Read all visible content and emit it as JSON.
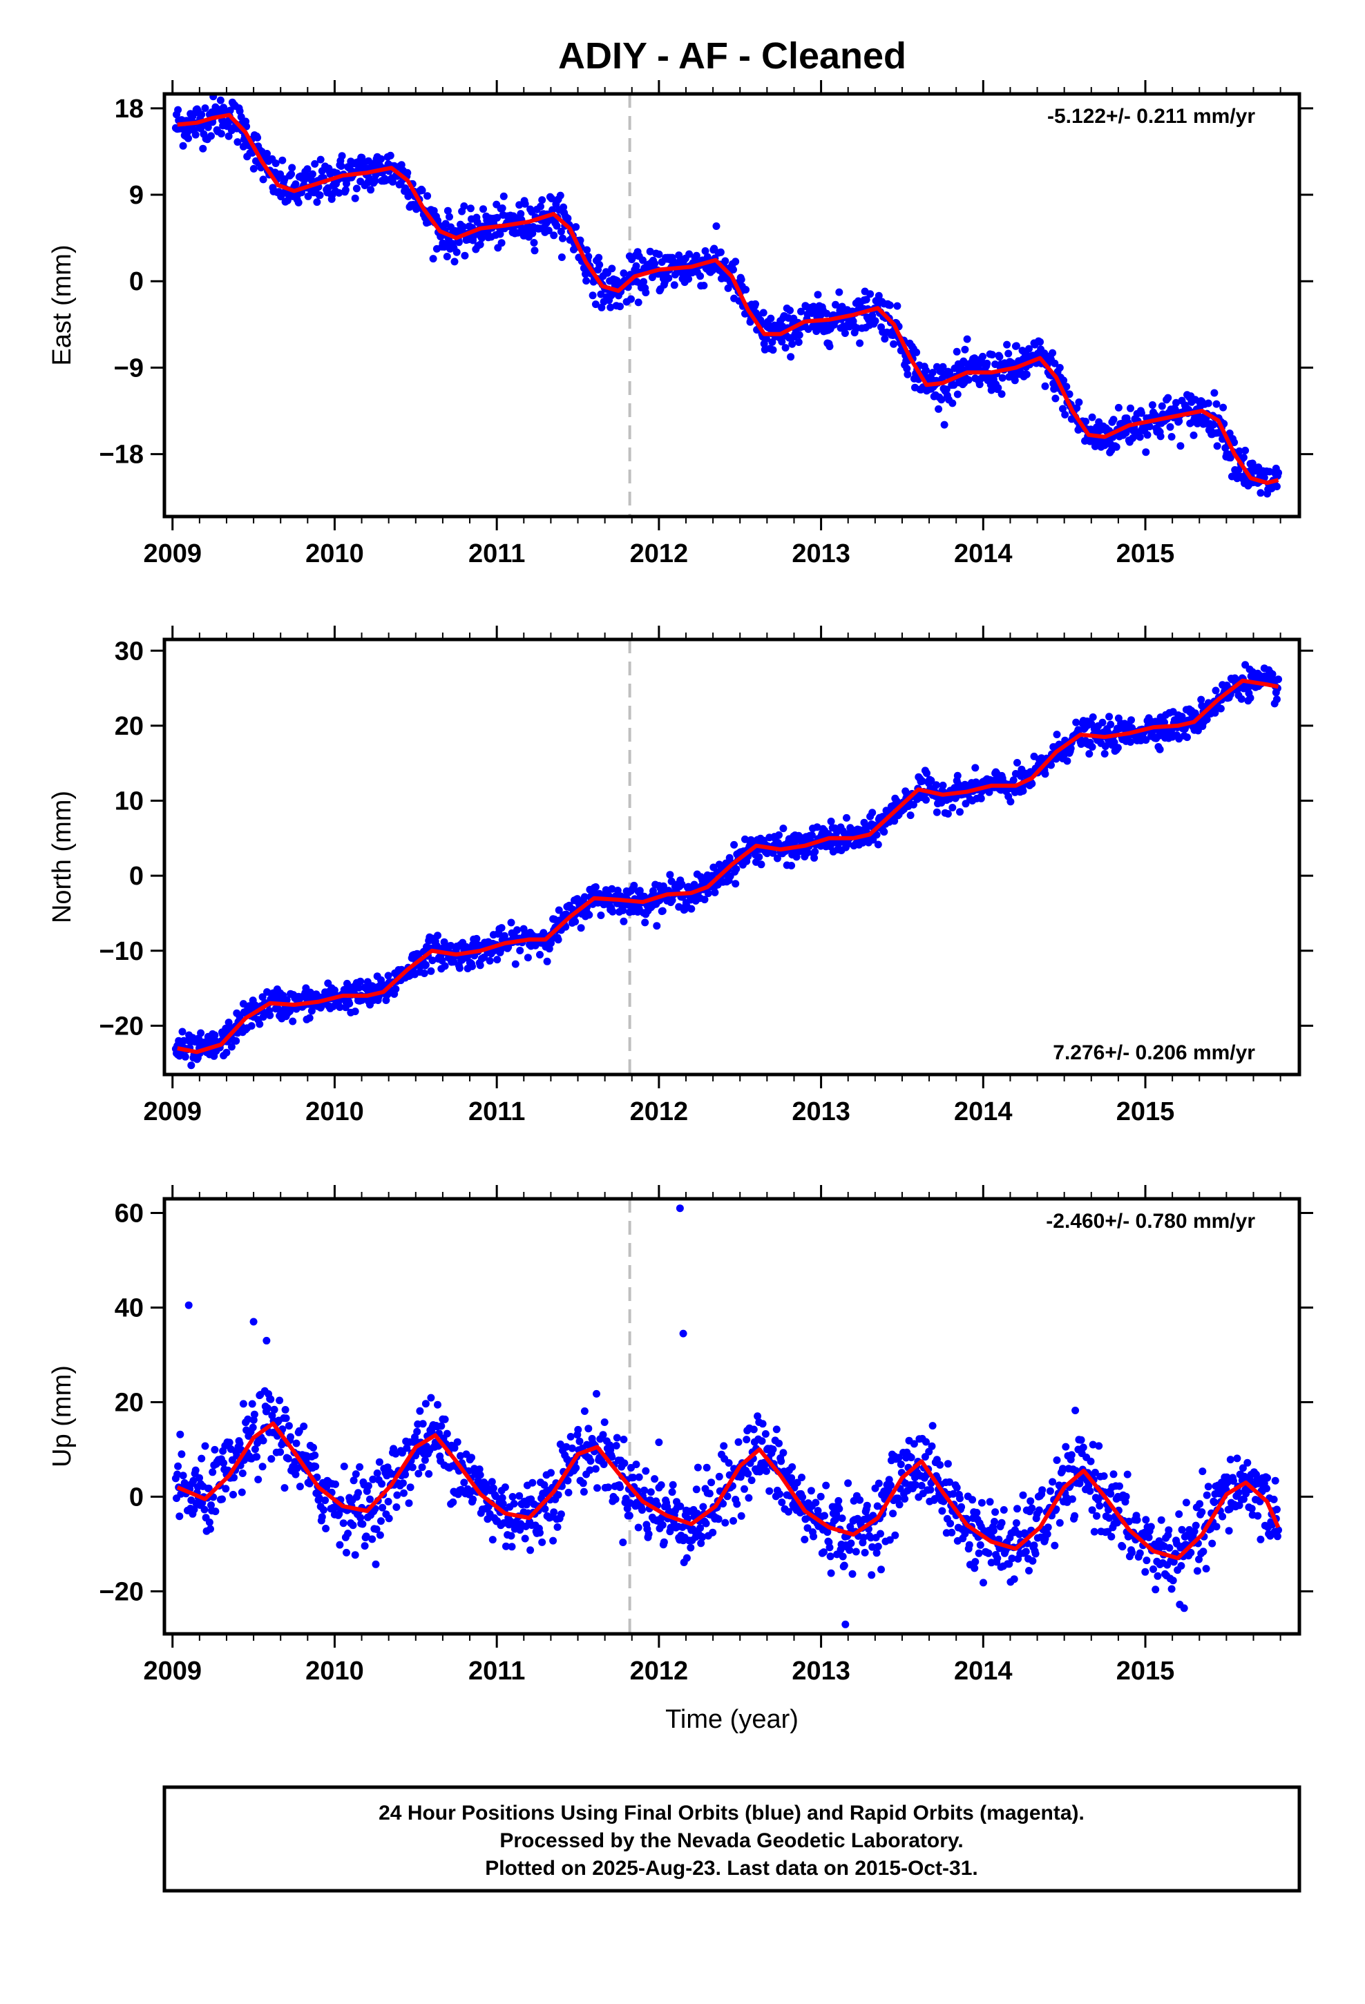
{
  "title": "ADIY  - AF - Cleaned",
  "colors": {
    "data": "#0000ff",
    "fit": "#ff0000",
    "break": "#bfbfbf",
    "frame": "#000000"
  },
  "chart_data": [
    {
      "type": "scatter",
      "id": "east",
      "ylabel": "East (mm)",
      "xlabel": "",
      "xlim": [
        2008.95,
        2015.95
      ],
      "ylim": [
        -24.5,
        19.5
      ],
      "yticks": [
        18,
        9,
        0,
        -9,
        -18
      ],
      "ytick_labels": [
        "18",
        "9",
        "0",
        "−9",
        "−18"
      ],
      "xticks": [
        2009,
        2010,
        2011,
        2012,
        2013,
        2014,
        2015
      ],
      "xtick_labels": [
        "2009",
        "2010",
        "2011",
        "2012",
        "2013",
        "2014",
        "2015"
      ],
      "rate_label": "-5.122+/- 0.211 mm/yr",
      "rate_position": "top-right",
      "break_line_x": 2011.82,
      "series": [
        {
          "kind": "points",
          "x_range": [
            2009.02,
            2015.82
          ],
          "noise_sd": 1.1
        },
        {
          "kind": "fit-line",
          "x": [
            2009.03,
            2009.15,
            2009.25,
            2009.35,
            2009.45,
            2009.55,
            2009.65,
            2009.75,
            2009.9,
            2010.05,
            2010.2,
            2010.35,
            2010.45,
            2010.55,
            2010.65,
            2010.75,
            2010.9,
            2011.05,
            2011.2,
            2011.35,
            2011.45,
            2011.55,
            2011.65,
            2011.75,
            2011.85,
            2012.0,
            2012.2,
            2012.35,
            2012.45,
            2012.55,
            2012.65,
            2012.75,
            2012.9,
            2013.05,
            2013.2,
            2013.35,
            2013.45,
            2013.55,
            2013.65,
            2013.75,
            2013.9,
            2014.05,
            2014.2,
            2014.35,
            2014.45,
            2014.55,
            2014.65,
            2014.75,
            2014.9,
            2015.05,
            2015.2,
            2015.35,
            2015.45,
            2015.55,
            2015.65,
            2015.75,
            2015.82
          ],
          "y": [
            16.3,
            16.5,
            17.0,
            17.3,
            15.5,
            12.5,
            10.0,
            9.4,
            10.2,
            11.0,
            11.3,
            11.8,
            10.5,
            7.5,
            5.2,
            4.5,
            5.5,
            5.8,
            6.2,
            7.0,
            5.5,
            2.0,
            -0.5,
            -1.0,
            0.5,
            1.2,
            1.5,
            2.2,
            0.5,
            -3.0,
            -5.5,
            -5.5,
            -4.2,
            -4.0,
            -3.5,
            -2.8,
            -4.5,
            -8.0,
            -10.8,
            -10.6,
            -9.5,
            -9.5,
            -9.0,
            -8.0,
            -10.0,
            -13.5,
            -16.0,
            -16.2,
            -15.0,
            -14.5,
            -14.0,
            -13.5,
            -14.5,
            -18.0,
            -20.5,
            -21.0,
            -20.7
          ]
        }
      ]
    },
    {
      "type": "scatter",
      "id": "north",
      "ylabel": "North (mm)",
      "xlabel": "",
      "xlim": [
        2008.95,
        2015.95
      ],
      "ylim": [
        -26.5,
        31.5
      ],
      "yticks": [
        30,
        20,
        10,
        0,
        -10,
        -20
      ],
      "ytick_labels": [
        "30",
        "20",
        "10",
        "0",
        "−10",
        "−20"
      ],
      "xticks": [
        2009,
        2010,
        2011,
        2012,
        2013,
        2014,
        2015
      ],
      "xtick_labels": [
        "2009",
        "2010",
        "2011",
        "2012",
        "2013",
        "2014",
        "2015"
      ],
      "rate_label": "7.276+/- 0.206 mm/yr",
      "rate_position": "bottom-right",
      "break_line_x": 2011.82,
      "series": [
        {
          "kind": "points",
          "x_range": [
            2009.02,
            2015.82
          ],
          "noise_sd": 1.0
        },
        {
          "kind": "fit-line",
          "x": [
            2009.03,
            2009.15,
            2009.3,
            2009.45,
            2009.6,
            2009.75,
            2009.9,
            2010.05,
            2010.2,
            2010.3,
            2010.45,
            2010.6,
            2010.75,
            2010.9,
            2011.05,
            2011.2,
            2011.3,
            2011.45,
            2011.6,
            2011.75,
            2011.9,
            2012.05,
            2012.2,
            2012.3,
            2012.45,
            2012.6,
            2012.75,
            2012.9,
            2013.05,
            2013.2,
            2013.3,
            2013.45,
            2013.6,
            2013.75,
            2013.9,
            2014.05,
            2014.2,
            2014.3,
            2014.45,
            2014.6,
            2014.75,
            2014.9,
            2015.05,
            2015.2,
            2015.3,
            2015.45,
            2015.6,
            2015.75,
            2015.82
          ],
          "y": [
            -23.0,
            -23.5,
            -22.5,
            -19.0,
            -17.0,
            -17.2,
            -16.8,
            -16.0,
            -16.0,
            -15.5,
            -12.5,
            -10.0,
            -10.5,
            -10.0,
            -9.0,
            -8.5,
            -8.5,
            -5.5,
            -3.0,
            -3.2,
            -3.5,
            -2.5,
            -2.3,
            -1.5,
            1.5,
            4.0,
            3.5,
            4.0,
            5.0,
            5.0,
            5.5,
            8.5,
            11.5,
            10.8,
            11.2,
            12.0,
            12.0,
            13.0,
            16.5,
            18.8,
            18.5,
            19.0,
            19.8,
            20.0,
            20.5,
            23.5,
            26.0,
            25.5,
            25.2
          ]
        }
      ]
    },
    {
      "type": "scatter",
      "id": "up",
      "ylabel": "Up (mm)",
      "xlabel": "Time (year)",
      "xlim": [
        2008.95,
        2015.95
      ],
      "ylim": [
        -29.0,
        63.0
      ],
      "yticks": [
        60,
        40,
        20,
        0,
        -20
      ],
      "ytick_labels": [
        "60",
        "40",
        "20",
        "0",
        "−20"
      ],
      "xticks": [
        2009,
        2010,
        2011,
        2012,
        2013,
        2014,
        2015
      ],
      "xtick_labels": [
        "2009",
        "2010",
        "2011",
        "2012",
        "2013",
        "2014",
        "2015"
      ],
      "rate_label": "-2.460+/- 0.780 mm/yr",
      "rate_position": "top-right",
      "break_line_x": 2011.82,
      "series": [
        {
          "kind": "points",
          "x_range": [
            2009.02,
            2015.82
          ],
          "noise_sd": 4.0,
          "outliers_x": [
            2009.1,
            2009.5,
            2009.58,
            2012.13,
            2012.15,
            2013.15,
            2012.0
          ],
          "outliers_y": [
            40.5,
            37.0,
            33.0,
            61.0,
            34.5,
            -27.0,
            11.5
          ]
        },
        {
          "kind": "fit-line",
          "x": [
            2009.03,
            2009.2,
            2009.35,
            2009.5,
            2009.62,
            2009.75,
            2009.9,
            2010.05,
            2010.2,
            2010.35,
            2010.5,
            2010.62,
            2010.75,
            2010.9,
            2011.05,
            2011.2,
            2011.35,
            2011.5,
            2011.62,
            2011.75,
            2011.9,
            2012.05,
            2012.2,
            2012.35,
            2012.5,
            2012.62,
            2012.75,
            2012.9,
            2013.05,
            2013.2,
            2013.35,
            2013.5,
            2013.62,
            2013.75,
            2013.9,
            2014.05,
            2014.2,
            2014.35,
            2014.5,
            2014.62,
            2014.75,
            2014.9,
            2015.05,
            2015.2,
            2015.35,
            2015.5,
            2015.62,
            2015.75,
            2015.82
          ],
          "y": [
            2.0,
            -0.5,
            4.5,
            12.5,
            15.5,
            9.5,
            2.0,
            -2.0,
            -3.0,
            2.5,
            10.5,
            13.0,
            7.5,
            0.5,
            -3.5,
            -4.5,
            1.0,
            9.0,
            10.5,
            5.0,
            -1.0,
            -4.0,
            -5.8,
            -2.0,
            6.5,
            10.0,
            4.5,
            -3.0,
            -6.5,
            -8.0,
            -4.5,
            4.0,
            7.5,
            1.0,
            -6.0,
            -9.5,
            -11.0,
            -6.5,
            2.0,
            5.5,
            0.0,
            -7.0,
            -11.5,
            -13.0,
            -8.0,
            0.5,
            3.0,
            -1.0,
            -6.5
          ]
        }
      ]
    }
  ],
  "footer": {
    "line1": "24 Hour Positions Using Final Orbits (blue) and Rapid Orbits (magenta).",
    "line2": "Processed by the Nevada Geodetic Laboratory.",
    "line3": "Plotted on 2025-Aug-23. Last data on 2015-Oct-31."
  }
}
